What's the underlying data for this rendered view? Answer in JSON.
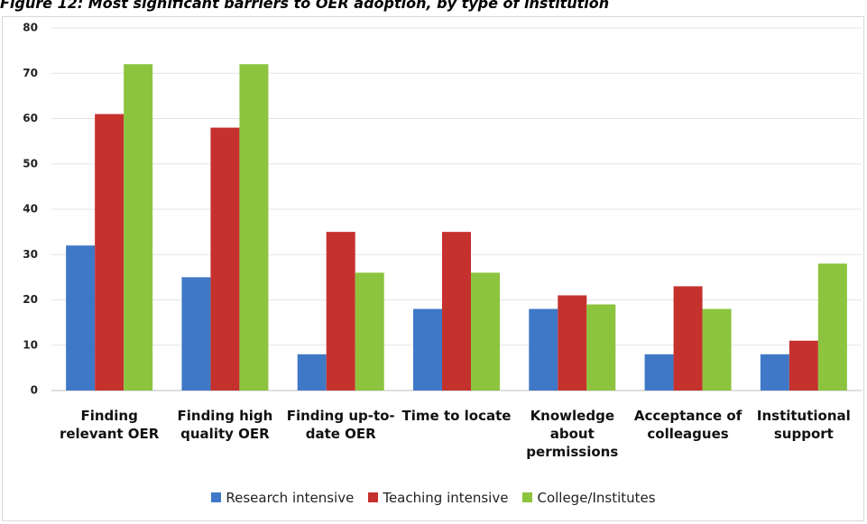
{
  "chart_data": {
    "type": "bar",
    "title": "Figure 12: Most significant barriers to OER adoption, by type of institution",
    "categories": [
      "Finding relevant OER",
      "Finding high quality OER",
      "Finding up-to-date OER",
      "Time to locate",
      "Knowledge about permissions",
      "Acceptance of colleagues",
      "Institutional support"
    ],
    "series": [
      {
        "name": "Research intensive",
        "color": "#3f78c6",
        "values": [
          32,
          25,
          8,
          18,
          18,
          8,
          8
        ]
      },
      {
        "name": "Teaching intensive",
        "color": "#c5312d",
        "values": [
          61,
          58,
          35,
          35,
          21,
          23,
          11
        ]
      },
      {
        "name": "College/Institutes",
        "color": "#8cc43f",
        "values": [
          72,
          72,
          26,
          26,
          19,
          18,
          28
        ]
      }
    ],
    "ylim": [
      0,
      80
    ],
    "yticks": [
      0,
      10,
      20,
      30,
      40,
      50,
      60,
      70,
      80
    ],
    "grid": true,
    "legend": "bottom"
  }
}
